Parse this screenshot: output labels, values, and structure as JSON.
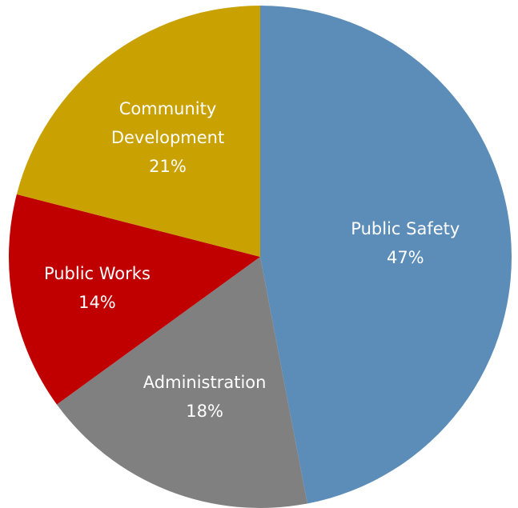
{
  "chart_data": {
    "type": "pie",
    "start_angle_deg": 0,
    "direction": "clockwise",
    "slices": [
      {
        "name": "Public Safety",
        "value": 47,
        "value_label": "47%",
        "color": "#5b8db8"
      },
      {
        "name": "Administration",
        "value": 18,
        "value_label": "18%",
        "color": "#808080"
      },
      {
        "name": "Public Works",
        "value": 14,
        "value_label": "14%",
        "color": "#c00000"
      },
      {
        "name": "Community Development",
        "value": 21,
        "value_label": "21%",
        "color": "#c9a100",
        "name_lines": [
          "Community",
          "Development"
        ]
      }
    ],
    "legend": "none"
  }
}
